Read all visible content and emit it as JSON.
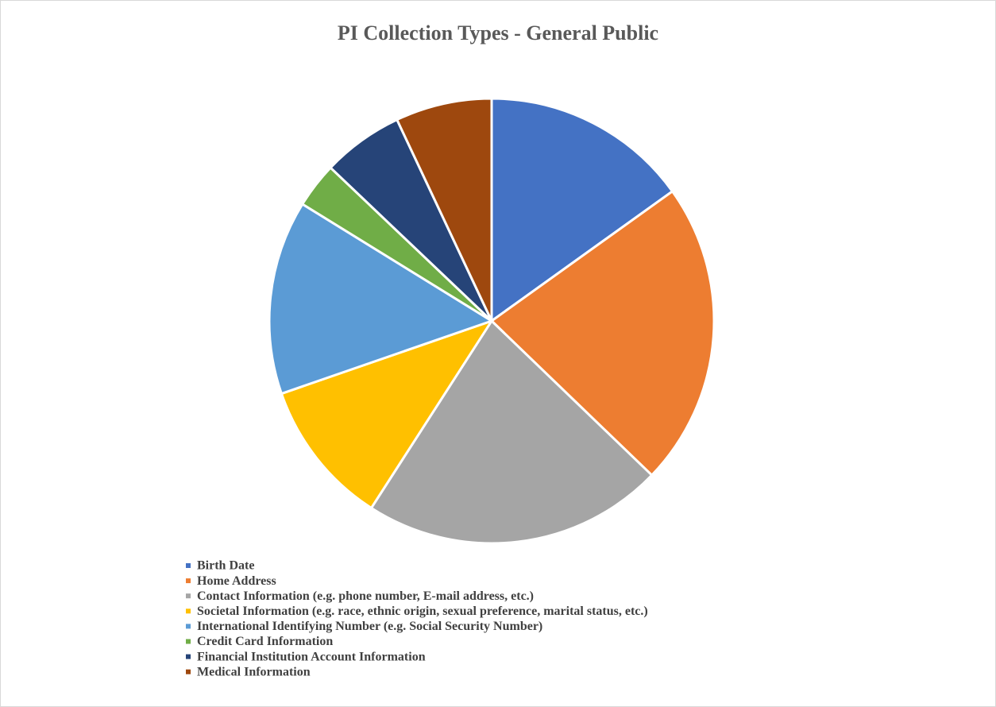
{
  "chart_data": {
    "type": "pie",
    "title": "PI Collection Types - General Public",
    "categories": [
      "Birth Date",
      "Home Address",
      "Contact Information (e.g. phone number, E-mail address, etc.)",
      "Societal Information (e.g. race, ethnic origin, sexual preference, marital status, etc.)",
      "International Identifying Number (e.g. Social Security Number)",
      "Credit Card Information",
      "Financial Institution Account Information",
      "Medical Information"
    ],
    "values": [
      15.1,
      22.1,
      21.9,
      10.6,
      14.1,
      3.3,
      5.9,
      7.0
    ],
    "colors": [
      "#4472c4",
      "#ed7d31",
      "#a5a5a5",
      "#ffc000",
      "#5b9bd5",
      "#70ad47",
      "#264478",
      "#9e480e"
    ],
    "legend": "bottom-left"
  }
}
